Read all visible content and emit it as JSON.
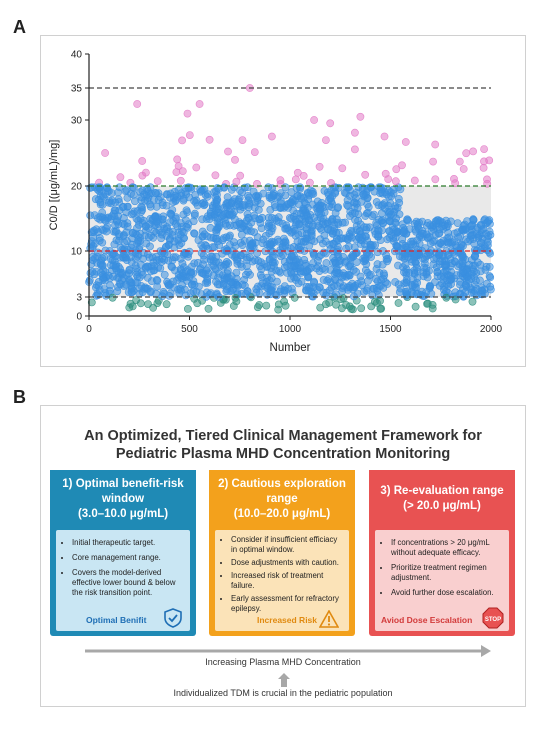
{
  "panel_a_label": "A",
  "panel_b_label": "B",
  "chart_data": {
    "type": "scatter",
    "title": "",
    "xlabel": "Number",
    "ylabel": "C0/D [(μg/mL)/mg]",
    "x_ticks": [
      "0",
      "500",
      "1000",
      "1500",
      "2000"
    ],
    "y_ticks": [
      "0",
      "3",
      "10",
      "20",
      "30",
      "35",
      "40"
    ],
    "xlim": [
      0,
      2000
    ],
    "ylim": [
      0,
      40
    ],
    "y_scale": "piecewise-linear",
    "grid": false,
    "n_points": 2000,
    "reference_lines": [
      {
        "y": 3,
        "style": "dashed",
        "color": "#444444"
      },
      {
        "y": 10,
        "style": "dashed",
        "color": "#e02020"
      },
      {
        "y": 20,
        "style": "dashed",
        "color": "#2a7a2a"
      },
      {
        "y": 35,
        "style": "dashed",
        "color": "#444444"
      }
    ],
    "shaded_band": {
      "from": 3,
      "to": 20,
      "color": "#e9e9e9"
    },
    "series": [
      {
        "range": "< 3",
        "color": "#2e8f7f"
      },
      {
        "range": "3 - 20",
        "color": "#3a8fe0"
      },
      {
        "range": "> 20",
        "color": "#e27ac6"
      }
    ],
    "sample_high_points": [
      {
        "x": 80,
        "y": 25
      },
      {
        "x": 240,
        "y": 32.5
      },
      {
        "x": 490,
        "y": 31
      },
      {
        "x": 550,
        "y": 32.5
      },
      {
        "x": 600,
        "y": 27
      },
      {
        "x": 800,
        "y": 35
      },
      {
        "x": 910,
        "y": 27.5
      },
      {
        "x": 1120,
        "y": 30
      },
      {
        "x": 1200,
        "y": 29.5
      },
      {
        "x": 1350,
        "y": 30.5
      },
      {
        "x": 1470,
        "y": 27.5
      },
      {
        "x": 1980,
        "y": 21
      }
    ]
  },
  "framework": {
    "title_line1": "An Optimized, Tiered Clinical Management Framework for",
    "title_line2": "Pediatric Plasma MHD Concentration Monitoring",
    "cards": [
      {
        "head_line1": "1)  Optimal benefit-risk",
        "head_line2": "window",
        "head_line3": "(3.0–10.0 μg/mL)",
        "bullets": [
          "Initial therapeutic target.",
          "Core management range.",
          "Covers the model-derived effective lower bound & below the risk transition point."
        ],
        "footer": "Optimal Benifit",
        "head_color": "#1f8ab5",
        "body_color": "#c9e6f3",
        "footer_color": "#1f6fb5",
        "icon": "shield-check-icon"
      },
      {
        "head_line1": "2)  Cautious exploration",
        "head_line2": "range",
        "head_line3": "(10.0–20.0 μg/mL)",
        "bullets": [
          "Consider if insufficient efficiacy in optimal window.",
          "Dose adjustments with caution.",
          "Increased risk of treatment failure.",
          "Early assessment for refractory epilepsy."
        ],
        "footer": "Increased Risk",
        "head_color": "#f3a11c",
        "body_color": "#fbe3b8",
        "footer_color": "#e08a10",
        "icon": "warning-triangle-icon"
      },
      {
        "head_line1": "3)  Re-evaluation range",
        "head_line2": "(> 20.0 μg/mL)",
        "head_line3": "",
        "bullets": [
          "If concentrations > 20 μg/mL without adequate efficacy.",
          "Prioritize treatment regimen adjustment.",
          "Avoid further dose escalation."
        ],
        "footer": "Aviod Dose Escalation",
        "head_color": "#e85252",
        "body_color": "#f9cfcf",
        "footer_color": "#d23a3a",
        "icon": "stop-sign-icon"
      }
    ],
    "axis_label": "Increasing Plasma MHD Concentration",
    "bottom_note": "Individualized TDM is crucial in the pediatric population",
    "stop_text": "STOP"
  }
}
